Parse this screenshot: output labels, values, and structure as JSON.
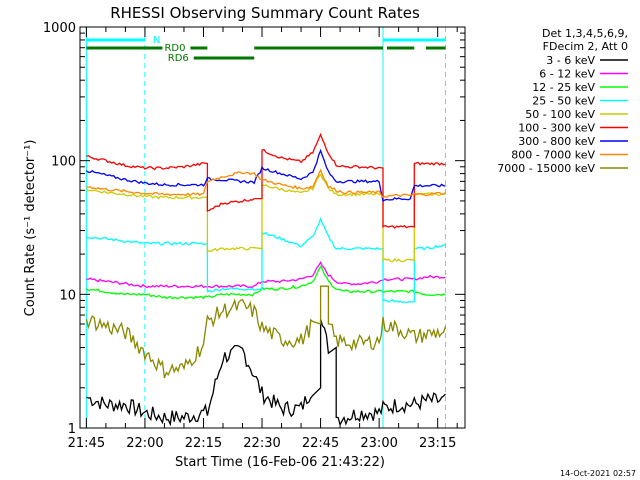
{
  "chart_data": {
    "type": "line",
    "title": "RHESSI Observing Summary Count Rates",
    "xlabel": "Start Time (16-Feb-06 21:43:22)",
    "ylabel": "Count Rate (s⁻¹ detector⁻¹)",
    "y_scale": "log",
    "ylim": [
      1,
      1000
    ],
    "xlim": [
      "21:43:22",
      "23:22:00"
    ],
    "x_ticks": [
      "21:45",
      "22:00",
      "22:15",
      "22:30",
      "22:45",
      "23:00",
      "23:15"
    ],
    "y_ticks": [
      "1",
      "10",
      "100",
      "1000"
    ],
    "legend_placement": "top-right outside",
    "legend_header": [
      "Det 1,3,4,5,6,9,",
      "FDecim 2, Att 0"
    ],
    "footer_timestamp": "14-Oct-2021 02:57",
    "night_boundaries": [
      "21:45",
      "23:01"
    ],
    "saa_boundaries": [
      "22:00",
      "23:17"
    ],
    "annotations": [
      {
        "text": "N",
        "color": "#00ffff",
        "segments": [
          [
            "21:45",
            "22:00"
          ],
          [
            "23:01",
            "23:17"
          ]
        ]
      },
      {
        "text": "RD0",
        "color": "#007700",
        "segments": [
          [
            "21:45",
            "22:16"
          ],
          [
            "22:28",
            "23:01"
          ],
          [
            "23:02",
            "23:09"
          ],
          [
            "23:12",
            "23:17"
          ]
        ]
      },
      {
        "text": "RD6",
        "color": "#007700",
        "segments": [
          [
            "22:12",
            "22:28"
          ]
        ]
      }
    ],
    "x": [
      "21:45",
      "21:50",
      "21:55",
      "22:00",
      "22:05",
      "22:10",
      "22:15",
      "22:16",
      "22:20",
      "22:25",
      "22:28",
      "22:30",
      "22:35",
      "22:40",
      "22:43",
      "22:45",
      "22:47",
      "22:49",
      "22:51",
      "22:55",
      "23:00",
      "23:01",
      "23:05",
      "23:08",
      "23:09",
      "23:12",
      "23:15",
      "23:17"
    ],
    "series": [
      {
        "name": "3 - 6 keV",
        "color": "#000000",
        "values": [
          1.7,
          1.5,
          1.5,
          1.3,
          1.2,
          1.2,
          1.3,
          1.3,
          3.4,
          3.8,
          2.5,
          1.8,
          1.4,
          1.4,
          2.0,
          6.5,
          4.0,
          1.2,
          1.2,
          1.3,
          1.3,
          1.4,
          1.5,
          1.5,
          1.5,
          1.6,
          1.6,
          1.6
        ]
      },
      {
        "name": "6 - 12 keV",
        "color": "#ff00ff",
        "values": [
          13,
          12.5,
          12,
          11.5,
          11.5,
          11.5,
          11.5,
          11.5,
          11.5,
          11.5,
          11.5,
          12.5,
          12.5,
          13,
          14,
          17,
          14,
          12.5,
          12,
          12,
          12.5,
          13,
          13,
          13,
          13,
          13.5,
          13.5,
          13.5
        ]
      },
      {
        "name": "12 - 25 keV",
        "color": "#00ff00",
        "values": [
          11,
          10.5,
          10,
          10,
          9.5,
          9.5,
          9.5,
          9.5,
          10,
          10,
          10,
          11,
          11,
          11.5,
          12.5,
          16,
          12.5,
          11,
          10.5,
          10.5,
          10.5,
          10.5,
          10.5,
          10.5,
          10.5,
          10,
          10,
          10
        ]
      },
      {
        "name": "25 - 50 keV",
        "color": "#00ffff",
        "values": [
          27,
          26,
          25,
          24,
          24,
          24,
          24,
          10.5,
          11,
          11,
          11,
          29,
          26,
          23,
          27,
          36,
          27,
          22,
          22,
          22,
          22,
          9,
          8.8,
          8.8,
          22,
          22,
          23,
          23
        ]
      },
      {
        "name": "50 - 100 keV",
        "color": "#cccc00",
        "values": [
          61,
          58,
          56,
          54,
          53,
          53,
          53,
          21,
          22,
          22,
          22,
          66,
          61,
          57,
          62,
          80,
          62,
          56,
          56,
          56,
          56,
          18,
          18,
          18,
          56,
          56,
          56,
          56
        ]
      },
      {
        "name": "100 - 300 keV",
        "color": "#ff0000",
        "values": [
          108,
          100,
          92,
          88,
          88,
          90,
          95,
          42,
          48,
          50,
          52,
          120,
          105,
          98,
          115,
          155,
          115,
          93,
          90,
          90,
          88,
          32,
          32,
          32,
          95,
          95,
          95,
          95
        ]
      },
      {
        "name": "300 - 800 keV",
        "color": "#0000ff",
        "values": [
          84,
          78,
          72,
          68,
          66,
          66,
          66,
          73,
          72,
          70,
          69,
          88,
          80,
          73,
          82,
          118,
          82,
          70,
          70,
          70,
          70,
          51,
          52,
          52,
          65,
          65,
          65,
          65
        ]
      },
      {
        "name": "800 - 7000 keV",
        "color": "#ff8800",
        "values": [
          64,
          61,
          59,
          57,
          56,
          56,
          56,
          70,
          76,
          82,
          80,
          72,
          66,
          62,
          64,
          85,
          64,
          60,
          58,
          58,
          58,
          54,
          55,
          55,
          56,
          56,
          57,
          57
        ]
      },
      {
        "name": "7000 - 15000 keV",
        "color": "#888800",
        "values": [
          6.5,
          5.8,
          5.2,
          3.7,
          2.7,
          2.8,
          4.2,
          6.2,
          7.6,
          8.2,
          7.4,
          5.6,
          4.6,
          4.5,
          6.0,
          11.5,
          6.0,
          4.5,
          4.4,
          4.3,
          4.5,
          6.0,
          5.5,
          5.0,
          4.8,
          5.0,
          5.2,
          5.2
        ]
      }
    ]
  }
}
